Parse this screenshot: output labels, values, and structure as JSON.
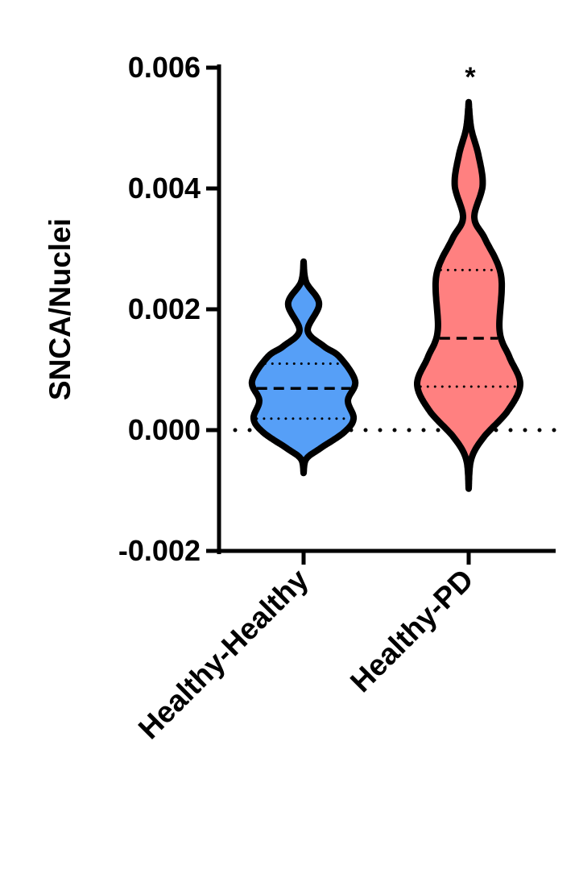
{
  "chart_data": {
    "type": "violin",
    "title": "",
    "xlabel": "",
    "ylabel": "SNCA/Nuclei",
    "ylim": [
      -0.002,
      0.006
    ],
    "yticks": [
      "-0.002",
      "0.000",
      "0.002",
      "0.004",
      "0.006"
    ],
    "ytick_values": [
      -0.002,
      0,
      0.002,
      0.004,
      0.006
    ],
    "reference_line": 0,
    "grid": false,
    "categories": [
      "Healthy-Healthy",
      "Healthy-PD"
    ],
    "series": [
      {
        "name": "Healthy-Healthy",
        "color": "#569ff7",
        "min": -0.00071,
        "max": 0.00279,
        "q1": 0.00019,
        "median": 0.00069,
        "q3": 0.0011,
        "density_profile": [
          [
            0.00279,
            0
          ],
          [
            0.00245,
            0.05
          ],
          [
            0.00209,
            0.3
          ],
          [
            0.00165,
            0.08
          ],
          [
            0.00139,
            0.39
          ],
          [
            0.00121,
            0.7
          ],
          [
            0.00081,
            1.0
          ],
          [
            0.00049,
            0.86
          ],
          [
            0.00019,
            0.97
          ],
          [
            -4e-05,
            0.78
          ],
          [
            -0.00031,
            0.31
          ],
          [
            -0.00048,
            0.05
          ],
          [
            -0.00071,
            0
          ]
        ],
        "annotation": ""
      },
      {
        "name": "Healthy-PD",
        "color": "#ff8080",
        "min": -0.00097,
        "max": 0.00543,
        "q1": 0.00072,
        "median": 0.00152,
        "q3": 0.00265,
        "density_profile": [
          [
            0.00543,
            0
          ],
          [
            0.00499,
            0.05
          ],
          [
            0.00455,
            0.19
          ],
          [
            0.00405,
            0.27
          ],
          [
            0.00352,
            0.11
          ],
          [
            0.00316,
            0.32
          ],
          [
            0.00255,
            0.63
          ],
          [
            0.00165,
            0.6
          ],
          [
            0.00121,
            0.79
          ],
          [
            0.00076,
            1.0
          ],
          [
            0.00032,
            0.76
          ],
          [
            -0.00012,
            0.29
          ],
          [
            -0.00048,
            0.05
          ],
          [
            -0.00097,
            0
          ]
        ],
        "annotation": "*"
      }
    ]
  }
}
